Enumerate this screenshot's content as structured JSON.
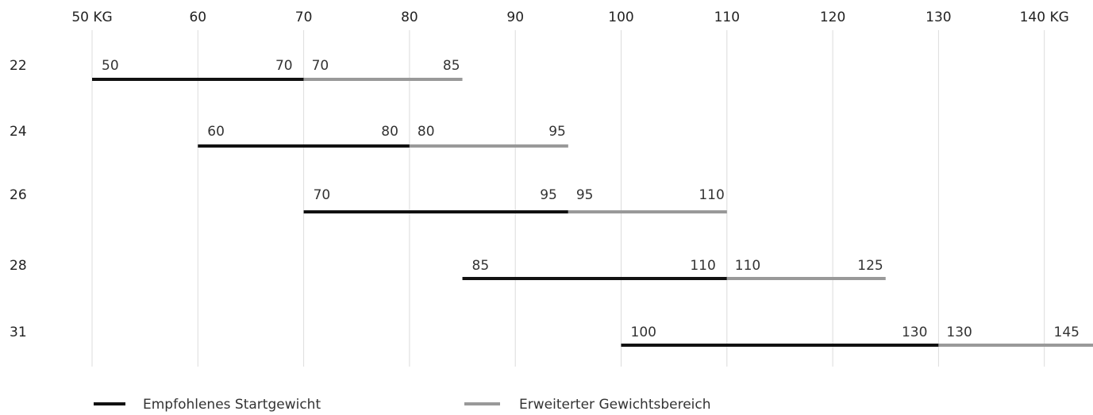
{
  "chart_data": {
    "type": "range-bar",
    "x_axis": {
      "ticks": [
        50,
        60,
        70,
        80,
        90,
        100,
        110,
        120,
        130,
        140
      ],
      "tick_labels": [
        "50 KG",
        "60",
        "70",
        "80",
        "90",
        "100",
        "110",
        "120",
        "130",
        "140 KG"
      ],
      "range": [
        50,
        145
      ]
    },
    "grid": true,
    "legend_position": "bottom-left",
    "series": [
      {
        "name": "Empfohlenes Startgewicht",
        "color": "#111111"
      },
      {
        "name": "Erweiterter Gewichtsbereich",
        "color": "#999999"
      }
    ],
    "rows": [
      {
        "label": "22",
        "recommended": [
          50,
          70
        ],
        "extended": [
          70,
          85
        ]
      },
      {
        "label": "24",
        "recommended": [
          60,
          80
        ],
        "extended": [
          80,
          95
        ]
      },
      {
        "label": "26",
        "recommended": [
          70,
          95
        ],
        "extended": [
          95,
          110
        ]
      },
      {
        "label": "28",
        "recommended": [
          85,
          110
        ],
        "extended": [
          110,
          125
        ]
      },
      {
        "label": "31",
        "recommended": [
          100,
          130
        ],
        "extended": [
          130,
          145
        ]
      }
    ]
  }
}
